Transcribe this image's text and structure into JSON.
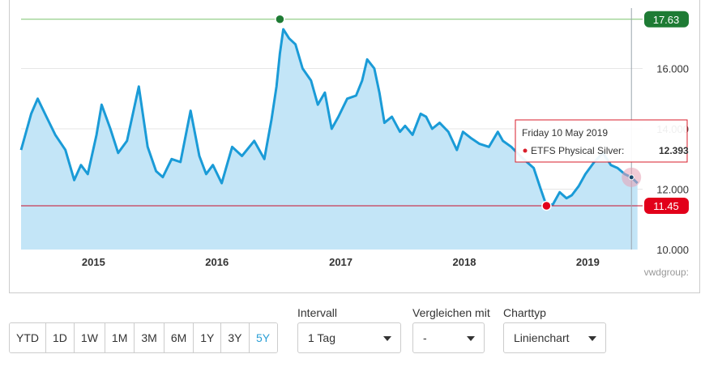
{
  "chart_data": {
    "type": "area",
    "series": [
      {
        "name": "ETFS Physical Silver",
        "color": "#1a9bd7",
        "fill": "#c3e5f7",
        "x": [
          "2014-06-01",
          "2014-07-01",
          "2014-07-20",
          "2014-08-15",
          "2014-09-10",
          "2014-10-10",
          "2014-11-05",
          "2014-11-25",
          "2014-12-15",
          "2015-01-10",
          "2015-01-25",
          "2015-02-20",
          "2015-03-15",
          "2015-04-10",
          "2015-05-15",
          "2015-06-10",
          "2015-07-05",
          "2015-07-25",
          "2015-08-20",
          "2015-09-15",
          "2015-10-15",
          "2015-11-10",
          "2015-11-30",
          "2015-12-20",
          "2016-01-15",
          "2016-02-15",
          "2016-03-15",
          "2016-04-20",
          "2016-05-20",
          "2016-06-10",
          "2016-06-25",
          "2016-07-05",
          "2016-07-15",
          "2016-08-01",
          "2016-08-20",
          "2016-09-10",
          "2016-10-05",
          "2016-10-25",
          "2016-11-15",
          "2016-12-05",
          "2016-12-25",
          "2017-01-20",
          "2017-02-15",
          "2017-03-05",
          "2017-03-20",
          "2017-04-10",
          "2017-04-25",
          "2017-05-10",
          "2017-06-01",
          "2017-06-25",
          "2017-07-10",
          "2017-08-01",
          "2017-08-25",
          "2017-09-10",
          "2017-09-28",
          "2017-10-20",
          "2017-11-15",
          "2017-12-10",
          "2017-12-28",
          "2018-01-20",
          "2018-02-15",
          "2018-03-15",
          "2018-04-10",
          "2018-04-25",
          "2018-05-20",
          "2018-06-15",
          "2018-07-05",
          "2018-07-25",
          "2018-08-15",
          "2018-09-01",
          "2018-09-20",
          "2018-10-10",
          "2018-10-30",
          "2018-11-15",
          "2018-12-05",
          "2018-12-25",
          "2019-01-20",
          "2019-02-15",
          "2019-03-10",
          "2019-03-30",
          "2019-04-20",
          "2019-05-10",
          "2019-05-28"
        ],
        "values": [
          13.3,
          14.5,
          15.0,
          14.4,
          13.8,
          13.3,
          12.3,
          12.8,
          12.5,
          13.8,
          14.8,
          14.0,
          13.2,
          13.6,
          15.4,
          13.4,
          12.6,
          12.4,
          13.0,
          12.9,
          14.6,
          13.1,
          12.5,
          12.8,
          12.2,
          13.4,
          13.1,
          13.6,
          13.0,
          14.3,
          15.4,
          16.5,
          17.3,
          17.0,
          16.8,
          16.0,
          15.6,
          14.8,
          15.2,
          14.0,
          14.4,
          15.0,
          15.1,
          15.6,
          16.3,
          16.0,
          15.2,
          14.2,
          14.4,
          13.9,
          14.1,
          13.8,
          14.5,
          14.4,
          14.0,
          14.2,
          13.9,
          13.3,
          13.9,
          13.7,
          13.5,
          13.4,
          13.9,
          13.6,
          13.4,
          13.1,
          12.9,
          12.7,
          12.0,
          11.45,
          11.5,
          11.9,
          11.7,
          11.8,
          12.1,
          12.5,
          12.9,
          13.2,
          12.8,
          12.7,
          12.5,
          12.393,
          12.2
        ]
      }
    ],
    "xlim": [
      "2014-06-01",
      "2019-06-12"
    ],
    "ylim": [
      10,
      18
    ],
    "x_ticks": [
      {
        "value": "2015-01-01",
        "label": "2015"
      },
      {
        "value": "2016-01-01",
        "label": "2016"
      },
      {
        "value": "2017-01-01",
        "label": "2017"
      },
      {
        "value": "2018-01-01",
        "label": "2018"
      },
      {
        "value": "2019-01-01",
        "label": "2019"
      }
    ],
    "y_ticks": [
      {
        "value": 10,
        "label": "10.000"
      },
      {
        "value": 12,
        "label": "12.000"
      },
      {
        "value": 14,
        "label": "14.000"
      },
      {
        "value": 16,
        "label": "16.000"
      }
    ],
    "grid": true,
    "max_marker": {
      "value": 17.63,
      "label": "17.63",
      "date": "2016-07-05",
      "color": "#1e7b34",
      "line_color": "#7cc46f"
    },
    "min_marker": {
      "value": 11.45,
      "label": "11.45",
      "date": "2018-09-01",
      "color": "#e2001a",
      "line_color": "#c8102e"
    },
    "crosshair_date": "2019-05-10",
    "tooltip": {
      "date": "Friday 10 May 2019",
      "series": "ETFS Physical Silver:",
      "value": "12.393",
      "date_value": "2019-05-10",
      "y_value": 12.393
    },
    "credit": "vwdgroup:"
  },
  "controls": {
    "ranges": [
      {
        "label": "YTD",
        "active": false
      },
      {
        "label": "1D",
        "active": false
      },
      {
        "label": "1W",
        "active": false
      },
      {
        "label": "1M",
        "active": false
      },
      {
        "label": "3M",
        "active": false
      },
      {
        "label": "6M",
        "active": false
      },
      {
        "label": "1Y",
        "active": false
      },
      {
        "label": "3Y",
        "active": false
      },
      {
        "label": "5Y",
        "active": true
      }
    ],
    "interval": {
      "label": "Intervall",
      "value": "1 Tag"
    },
    "compare": {
      "label": "Vergleichen mit",
      "value": "-"
    },
    "chart_type": {
      "label": "Charttyp",
      "value": "Linienchart"
    }
  }
}
